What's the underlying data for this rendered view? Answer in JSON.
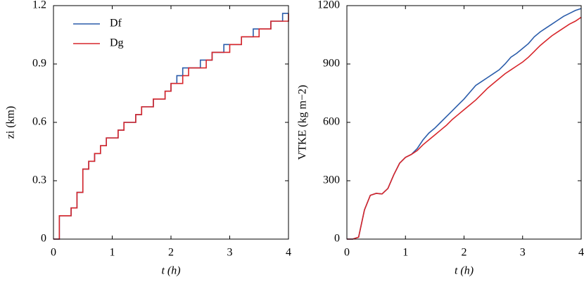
{
  "chart_data": [
    {
      "type": "line",
      "drawstyle": "steps-post",
      "xlabel": "t (h)",
      "ylabel": "zi (km)",
      "xlim": [
        0,
        4
      ],
      "xticks": [
        0,
        1,
        2,
        3,
        4
      ],
      "ylim": [
        0,
        1.2
      ],
      "yticks": [
        0,
        0.3,
        0.6,
        0.9,
        1.2
      ],
      "legend": "upper left",
      "x": [
        0,
        0.1,
        0.2,
        0.3,
        0.4,
        0.5,
        0.6,
        0.7,
        0.8,
        0.9,
        1.0,
        1.1,
        1.2,
        1.3,
        1.4,
        1.5,
        1.6,
        1.7,
        1.8,
        1.9,
        2.0,
        2.1,
        2.2,
        2.3,
        2.4,
        2.5,
        2.6,
        2.7,
        2.8,
        2.9,
        3.0,
        3.1,
        3.2,
        3.3,
        3.4,
        3.5,
        3.6,
        3.7,
        3.8,
        3.9,
        4.0
      ],
      "series": [
        {
          "name": "Df",
          "color": "#2a5caa",
          "values": [
            0,
            0.12,
            0.12,
            0.16,
            0.24,
            0.36,
            0.4,
            0.44,
            0.48,
            0.52,
            0.52,
            0.56,
            0.6,
            0.6,
            0.64,
            0.68,
            0.68,
            0.72,
            0.72,
            0.76,
            0.8,
            0.84,
            0.88,
            0.88,
            0.88,
            0.92,
            0.92,
            0.96,
            0.96,
            1.0,
            1.0,
            1.0,
            1.04,
            1.04,
            1.08,
            1.08,
            1.08,
            1.12,
            1.12,
            1.16,
            1.16
          ]
        },
        {
          "name": "Dg",
          "color": "#d7262b",
          "values": [
            0,
            0.12,
            0.12,
            0.16,
            0.24,
            0.36,
            0.4,
            0.44,
            0.48,
            0.52,
            0.52,
            0.56,
            0.6,
            0.6,
            0.64,
            0.68,
            0.68,
            0.72,
            0.72,
            0.76,
            0.8,
            0.8,
            0.84,
            0.88,
            0.88,
            0.88,
            0.92,
            0.96,
            0.96,
            0.96,
            1.0,
            1.0,
            1.04,
            1.04,
            1.04,
            1.08,
            1.08,
            1.12,
            1.12,
            1.12,
            1.16
          ]
        }
      ]
    },
    {
      "type": "line",
      "xlabel": "t (h)",
      "ylabel": "VTKE (kg m−2)",
      "xlim": [
        0,
        4
      ],
      "xticks": [
        0,
        1,
        2,
        3,
        4
      ],
      "ylim": [
        0,
        1200
      ],
      "yticks": [
        0,
        300,
        600,
        900,
        1200
      ],
      "x": [
        0,
        0.1,
        0.2,
        0.3,
        0.4,
        0.5,
        0.6,
        0.7,
        0.8,
        0.9,
        1.0,
        1.1,
        1.2,
        1.3,
        1.4,
        1.5,
        1.6,
        1.7,
        1.8,
        1.9,
        2.0,
        2.1,
        2.2,
        2.3,
        2.4,
        2.5,
        2.6,
        2.7,
        2.8,
        2.9,
        3.0,
        3.1,
        3.2,
        3.3,
        3.4,
        3.5,
        3.6,
        3.7,
        3.8,
        3.9,
        4.0
      ],
      "series": [
        {
          "name": "Df",
          "color": "#2a5caa",
          "values": [
            0,
            0,
            10,
            150,
            225,
            235,
            232,
            260,
            330,
            390,
            420,
            435,
            465,
            510,
            545,
            570,
            600,
            630,
            660,
            690,
            720,
            755,
            790,
            810,
            830,
            850,
            870,
            900,
            935,
            955,
            980,
            1005,
            1040,
            1065,
            1085,
            1105,
            1125,
            1145,
            1160,
            1175,
            1185
          ]
        },
        {
          "name": "Dg",
          "color": "#d7262b",
          "values": [
            0,
            0,
            10,
            150,
            225,
            235,
            232,
            260,
            330,
            390,
            420,
            435,
            455,
            485,
            510,
            535,
            560,
            585,
            615,
            640,
            665,
            690,
            715,
            745,
            775,
            800,
            825,
            850,
            870,
            890,
            910,
            935,
            965,
            995,
            1020,
            1045,
            1065,
            1085,
            1105,
            1120,
            1140
          ]
        }
      ]
    }
  ]
}
